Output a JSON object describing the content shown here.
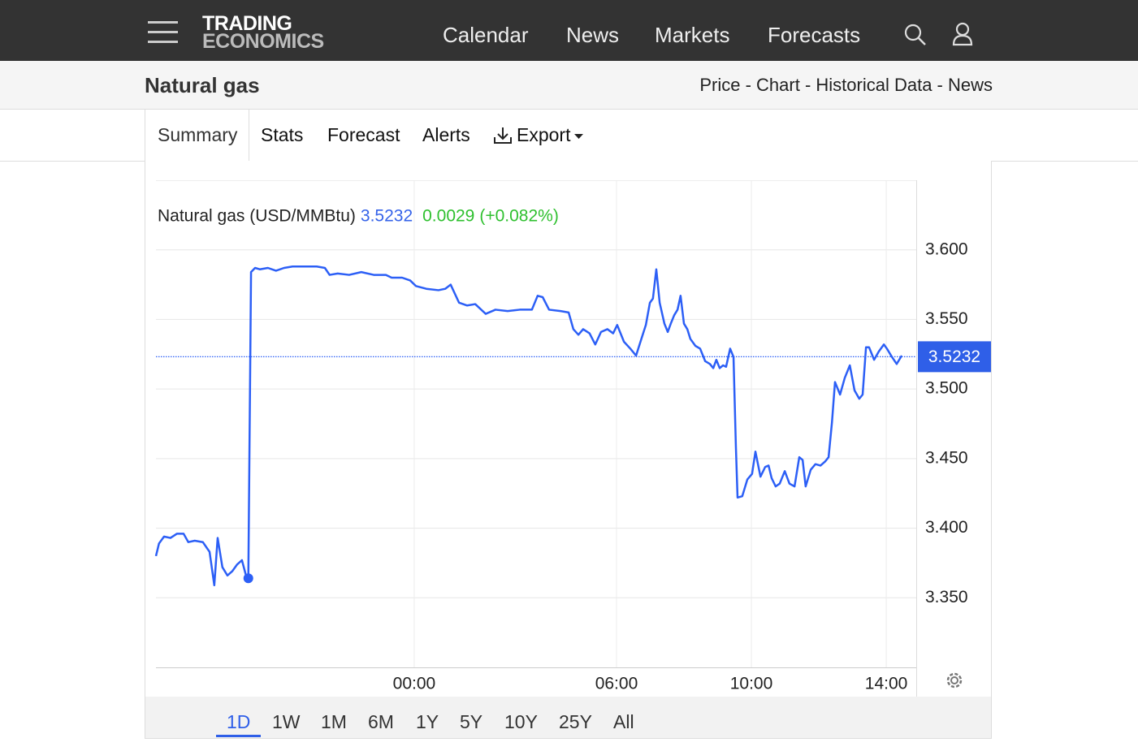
{
  "nav": {
    "logo_top": "TRADING",
    "logo_bottom": "ECONOMICS",
    "links": [
      "Calendar",
      "News",
      "Markets",
      "Forecasts"
    ]
  },
  "header": {
    "title": "Natural gas",
    "links": "Price - Chart - Historical Data - News"
  },
  "tabs": [
    "Summary",
    "Stats",
    "Forecast",
    "Alerts",
    "Export"
  ],
  "chart_data": {
    "type": "line",
    "last": 3.5232,
    "change": 0.0029,
    "change_pct": "(+0.082%)",
    "x": [
      -7.66,
      -7.57,
      -7.42,
      -7.23,
      -7.04,
      -6.84,
      -6.7,
      -6.51,
      -6.27,
      -6.07,
      -5.93,
      -5.83,
      -5.69,
      -5.54,
      -5.4,
      -5.25,
      -5.11,
      -4.99,
      -4.92,
      -4.84,
      -4.72,
      -4.58,
      -4.34,
      -4.1,
      -3.86,
      -3.61,
      -3.37,
      -3.13,
      -2.89,
      -2.65,
      -2.51,
      -2.27,
      -1.93,
      -1.57,
      -1.2,
      -0.84,
      -0.67,
      -0.36,
      -0.12,
      0.05,
      0.36,
      0.72,
      0.92,
      1.08,
      1.33,
      1.57,
      1.81,
      2.12,
      2.41,
      2.77,
      3.13,
      3.49,
      3.66,
      3.81,
      4.0,
      4.34,
      4.58,
      4.72,
      4.87,
      5.01,
      5.2,
      5.37,
      5.54,
      5.73,
      5.9,
      6.02,
      6.22,
      6.41,
      6.58,
      6.75,
      6.87,
      6.99,
      7.08,
      7.18,
      7.28,
      7.42,
      7.52,
      7.61,
      7.71,
      7.81,
      7.9,
      8.0,
      8.1,
      8.19,
      8.34,
      8.48,
      8.63,
      8.77,
      8.87,
      8.96,
      9.06,
      9.16,
      9.25,
      9.37,
      9.47,
      9.54,
      9.59,
      9.73,
      9.88,
      10.02,
      10.12,
      10.27,
      10.41,
      10.51,
      10.6,
      10.72,
      10.84,
      10.99,
      11.13,
      11.28,
      11.42,
      11.52,
      11.61,
      11.76,
      11.9,
      12.05,
      12.19,
      12.29,
      12.39,
      12.48,
      12.63,
      12.77,
      12.92,
      13.06,
      13.2,
      13.3,
      13.4,
      13.49,
      13.64,
      13.78,
      13.93,
      14.02,
      14.17,
      14.31,
      14.46
    ],
    "series": [
      {
        "name": "Natural gas (USD/MMBtu)",
        "color": "#2c5ff6",
        "values": [
          3.38,
          3.389,
          3.394,
          3.393,
          3.396,
          3.396,
          3.39,
          3.391,
          3.39,
          3.383,
          3.359,
          3.393,
          3.372,
          3.366,
          3.369,
          3.374,
          3.377,
          3.366,
          3.364,
          3.584,
          3.587,
          3.586,
          3.587,
          3.585,
          3.587,
          3.588,
          3.588,
          3.588,
          3.588,
          3.587,
          3.582,
          3.583,
          3.582,
          3.584,
          3.582,
          3.582,
          3.58,
          3.58,
          3.578,
          3.574,
          3.572,
          3.571,
          3.572,
          3.575,
          3.562,
          3.56,
          3.561,
          3.554,
          3.557,
          3.556,
          3.557,
          3.557,
          3.567,
          3.566,
          3.557,
          3.556,
          3.555,
          3.543,
          3.539,
          3.543,
          3.54,
          3.532,
          3.541,
          3.543,
          3.54,
          3.546,
          3.534,
          3.529,
          3.524,
          3.537,
          3.546,
          3.562,
          3.565,
          3.586,
          3.562,
          3.547,
          3.541,
          3.547,
          3.553,
          3.557,
          3.567,
          3.547,
          3.543,
          3.536,
          3.531,
          3.529,
          3.52,
          3.518,
          3.515,
          3.521,
          3.515,
          3.517,
          3.516,
          3.529,
          3.523,
          3.459,
          3.422,
          3.423,
          3.435,
          3.439,
          3.455,
          3.437,
          3.444,
          3.445,
          3.436,
          3.43,
          3.432,
          3.441,
          3.432,
          3.43,
          3.451,
          3.449,
          3.43,
          3.442,
          3.446,
          3.445,
          3.448,
          3.451,
          3.476,
          3.505,
          3.496,
          3.508,
          3.517,
          3.499,
          3.493,
          3.496,
          3.53,
          3.53,
          3.521,
          3.527,
          3.532,
          3.529,
          3.523,
          3.518,
          3.524
        ]
      }
    ],
    "xlim": [
      -7.66,
      14.89
    ],
    "xticks": [
      {
        "value": 0,
        "label": "00:00"
      },
      {
        "value": 6,
        "label": "06:00"
      },
      {
        "value": 10,
        "label": "10:00"
      },
      {
        "value": 14,
        "label": "14:00"
      }
    ],
    "ylim": [
      3.3,
      3.65
    ],
    "yticks": [
      {
        "value": 3.35,
        "label": "3.350"
      },
      {
        "value": 3.4,
        "label": "3.400"
      },
      {
        "value": 3.45,
        "label": "3.450"
      },
      {
        "value": 3.5,
        "label": "3.500"
      },
      {
        "value": 3.55,
        "label": "3.550"
      },
      {
        "value": 3.6,
        "label": "3.600"
      }
    ],
    "grid": true
  },
  "ranges": [
    "1D",
    "1W",
    "1M",
    "6M",
    "1Y",
    "5Y",
    "10Y",
    "25Y",
    "All"
  ],
  "selected_range": "1D"
}
